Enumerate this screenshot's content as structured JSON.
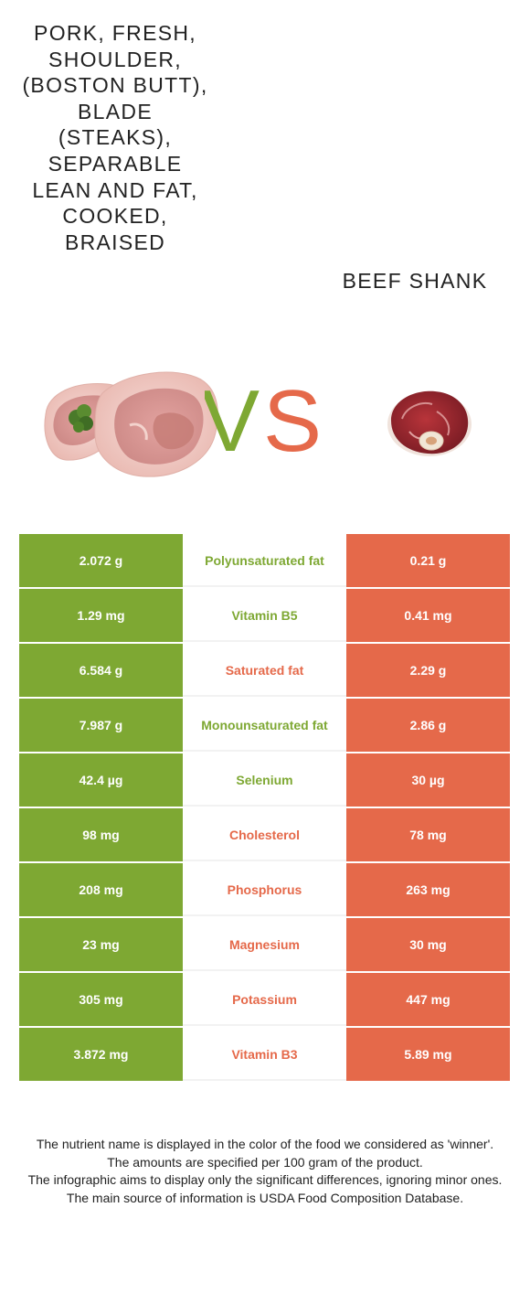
{
  "left_food": {
    "name": "Pork, fresh, shoulder, (Boston butt), blade (steaks), separable lean and fat, cooked, braised",
    "color": "#7ea833"
  },
  "right_food": {
    "name": "Beef shank",
    "color": "#e5694a"
  },
  "vs": {
    "v": "V",
    "s": "S"
  },
  "rows": [
    {
      "left": "2.072 g",
      "nutrient": "Polyunsaturated fat",
      "right": "0.21 g",
      "winner": "left"
    },
    {
      "left": "1.29 mg",
      "nutrient": "Vitamin B5",
      "right": "0.41 mg",
      "winner": "left"
    },
    {
      "left": "6.584 g",
      "nutrient": "Saturated fat",
      "right": "2.29 g",
      "winner": "right"
    },
    {
      "left": "7.987 g",
      "nutrient": "Monounsaturated fat",
      "right": "2.86 g",
      "winner": "left"
    },
    {
      "left": "42.4 µg",
      "nutrient": "Selenium",
      "right": "30 µg",
      "winner": "left"
    },
    {
      "left": "98 mg",
      "nutrient": "Cholesterol",
      "right": "78 mg",
      "winner": "right"
    },
    {
      "left": "208 mg",
      "nutrient": "Phosphorus",
      "right": "263 mg",
      "winner": "right"
    },
    {
      "left": "23 mg",
      "nutrient": "Magnesium",
      "right": "30 mg",
      "winner": "right"
    },
    {
      "left": "305 mg",
      "nutrient": "Potassium",
      "right": "447 mg",
      "winner": "right"
    },
    {
      "left": "3.872 mg",
      "nutrient": "Vitamin B3",
      "right": "5.89 mg",
      "winner": "right"
    }
  ],
  "footer": [
    "The nutrient name is displayed in the color of the food we considered as 'winner'.",
    "The amounts are specified per 100 gram of the product.",
    "The infographic aims to display only the significant differences, ignoring minor ones.",
    "The main source of information is USDA Food Composition Database."
  ]
}
